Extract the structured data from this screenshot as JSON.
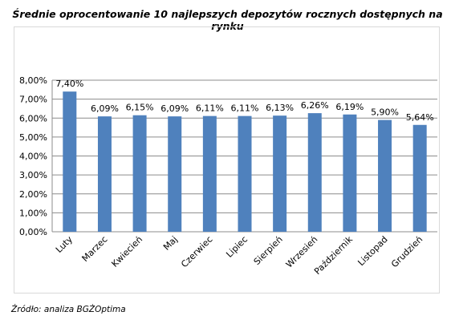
{
  "chart_data": {
    "type": "bar",
    "title": "Średnie oprocentowanie 10 najlepszych depozytów rocznych dostępnych na rynku",
    "categories": [
      "Luty",
      "Marzec",
      "Kwiecień",
      "Maj",
      "Czerwiec",
      "Lipiec",
      "Sierpień",
      "Wrzesień",
      "Październik",
      "Listopad",
      "Grudzień"
    ],
    "values": [
      7.4,
      6.09,
      6.15,
      6.09,
      6.11,
      6.11,
      6.13,
      6.26,
      6.19,
      5.9,
      5.64
    ],
    "value_labels": [
      "7,40%",
      "6,09%",
      "6,15%",
      "6,09%",
      "6,11%",
      "6,11%",
      "6,13%",
      "6,26%",
      "6,19%",
      "5,90%",
      "5,64%"
    ],
    "y_ticks": [
      "0,00%",
      "1,00%",
      "2,00%",
      "3,00%",
      "4,00%",
      "5,00%",
      "6,00%",
      "7,00%",
      "8,00%"
    ],
    "ylim": [
      0,
      8
    ],
    "grid": true,
    "legend": "none",
    "bar_color": "#4f81bd",
    "grid_color": "#8c8c8c",
    "source": "Źródło: analiza BGŻOptima"
  }
}
